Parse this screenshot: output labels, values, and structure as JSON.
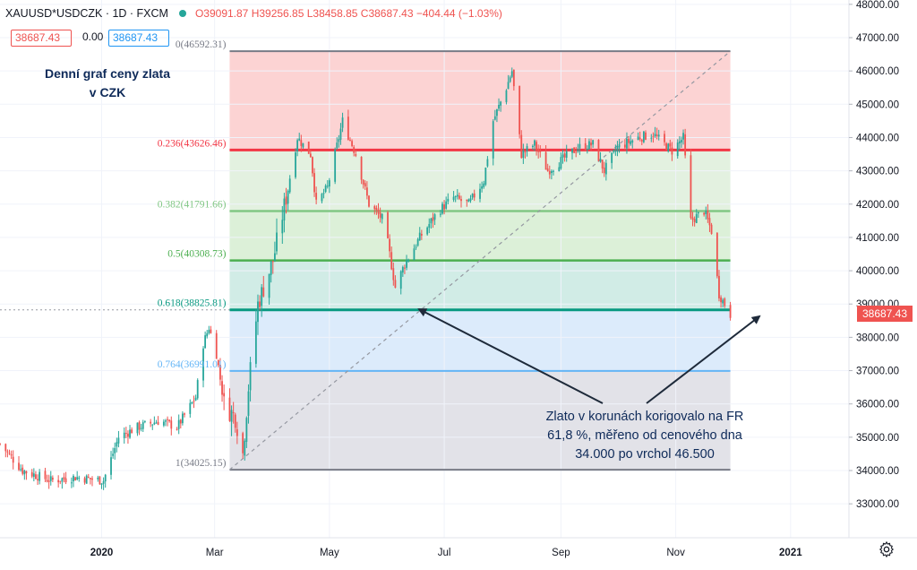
{
  "header": {
    "symbol": "XAUUSD*USDCZK · 1D · FXCM",
    "ohlc_text": "O39091.87 H39256.85 L38458.85 C38687.43 −404.44 (−1.03%)"
  },
  "quotes": {
    "sell": "38687.43",
    "spread": "0.00",
    "buy": "38687.43"
  },
  "annotations": {
    "title_line1": "Denní graf ceny zlata",
    "title_line2": "v CZK",
    "comment_line1": "Zlato v korunách korigovalo na FR",
    "comment_line2": "61,8 %, měřeno od cenového dna",
    "comment_line3": "34.000 po vrchol 46.500"
  },
  "colors": {
    "up": "#26a69a",
    "down": "#ef5350",
    "level_0": "#787b86",
    "level_0236": "#f23645",
    "level_0382": "#81c784",
    "level_05": "#4caf50",
    "level_0618": "#089981",
    "level_0764": "#64b5f6",
    "level_1": "#787b86"
  },
  "chart_data": {
    "type": "candlestick",
    "y_axis_side": "right",
    "ylim": [
      32400,
      48000
    ],
    "y_ticks": [
      33000,
      34000,
      35000,
      36000,
      37000,
      38000,
      39000,
      40000,
      41000,
      42000,
      43000,
      44000,
      45000,
      46000,
      47000,
      48000
    ],
    "y_tick_labels": [
      "33000.00",
      "34000.00",
      "35000.00",
      "36000.00",
      "37000.00",
      "38000.00",
      "39000.00",
      "40000.00",
      "41000.00",
      "42000.00",
      "43000.00",
      "44000.00",
      "45000.00",
      "46000.00",
      "47000.00",
      "48000.00"
    ],
    "x_tick_labels": [
      "2020",
      "Mar",
      "May",
      "Jul",
      "Sep",
      "Nov",
      "2021"
    ],
    "x_tick_dates": [
      "2020-01-01",
      "2020-03-01",
      "2020-05-01",
      "2020-07-01",
      "2020-09-01",
      "2020-11-01",
      "2021-01-01"
    ],
    "x_range": [
      "2019-11-08",
      "2021-02-01"
    ],
    "last_price": 38687.43,
    "last_price_label": "38687.43",
    "fibonacci": {
      "start_date": "2020-03-09",
      "end_date": "2020-11-30",
      "levels": [
        {
          "ratio": 0,
          "price": 46592.31,
          "label": "0(46592.31)"
        },
        {
          "ratio": 0.236,
          "price": 43626.46,
          "label": "0.236(43626.46)"
        },
        {
          "ratio": 0.382,
          "price": 41791.66,
          "label": "0.382(41791.66)"
        },
        {
          "ratio": 0.5,
          "price": 40308.73,
          "label": "0.5(40308.73)"
        },
        {
          "ratio": 0.618,
          "price": 38825.81,
          "label": "0.618(38825.81)"
        },
        {
          "ratio": 0.764,
          "price": 36991.01,
          "label": "0.764(36991.01)"
        },
        {
          "ratio": 1,
          "price": 34025.15,
          "label": "1(34025.15)"
        }
      ],
      "trend_line": {
        "from": [
          "2020-03-09",
          34025.15
        ],
        "to": [
          "2020-11-30",
          46592.31
        ]
      }
    },
    "price_path": [
      [
        "2019-11-08",
        34800
      ],
      [
        "2019-11-20",
        34000
      ],
      [
        "2019-12-05",
        33700
      ],
      [
        "2019-12-18",
        33800
      ],
      [
        "2020-01-02",
        33700
      ],
      [
        "2020-01-10",
        35000
      ],
      [
        "2020-01-20",
        35300
      ],
      [
        "2020-02-01",
        35500
      ],
      [
        "2020-02-10",
        35300
      ],
      [
        "2020-02-20",
        36200
      ],
      [
        "2020-02-24",
        37800
      ],
      [
        "2020-02-27",
        38300
      ],
      [
        "2020-03-02",
        37500
      ],
      [
        "2020-03-06",
        36000
      ],
      [
        "2020-03-12",
        35600
      ],
      [
        "2020-03-16",
        34500
      ],
      [
        "2020-03-19",
        36500
      ],
      [
        "2020-03-24",
        39000
      ],
      [
        "2020-04-01",
        40300
      ],
      [
        "2020-04-08",
        42200
      ],
      [
        "2020-04-14",
        44000
      ],
      [
        "2020-04-21",
        43500
      ],
      [
        "2020-04-24",
        42000
      ],
      [
        "2020-04-30",
        42500
      ],
      [
        "2020-05-08",
        44500
      ],
      [
        "2020-05-15",
        43500
      ],
      [
        "2020-05-22",
        42000
      ],
      [
        "2020-05-30",
        41500
      ],
      [
        "2020-06-05",
        39500
      ],
      [
        "2020-06-10",
        40200
      ],
      [
        "2020-06-18",
        41000
      ],
      [
        "2020-06-28",
        41800
      ],
      [
        "2020-07-06",
        42200
      ],
      [
        "2020-07-14",
        42000
      ],
      [
        "2020-07-22",
        42700
      ],
      [
        "2020-07-27",
        44500
      ],
      [
        "2020-08-03",
        45500
      ],
      [
        "2020-08-06",
        46000
      ],
      [
        "2020-08-11",
        43500
      ],
      [
        "2020-08-18",
        43800
      ],
      [
        "2020-08-25",
        43000
      ],
      [
        "2020-09-01",
        43300
      ],
      [
        "2020-09-10",
        43700
      ],
      [
        "2020-09-18",
        43800
      ],
      [
        "2020-09-24",
        43000
      ],
      [
        "2020-10-01",
        43700
      ],
      [
        "2020-10-12",
        44000
      ],
      [
        "2020-10-20",
        44100
      ],
      [
        "2020-10-30",
        43600
      ],
      [
        "2020-11-05",
        44000
      ],
      [
        "2020-11-09",
        41500
      ],
      [
        "2020-11-16",
        41800
      ],
      [
        "2020-11-20",
        41200
      ],
      [
        "2020-11-24",
        39300
      ],
      [
        "2020-11-30",
        38687
      ]
    ]
  }
}
